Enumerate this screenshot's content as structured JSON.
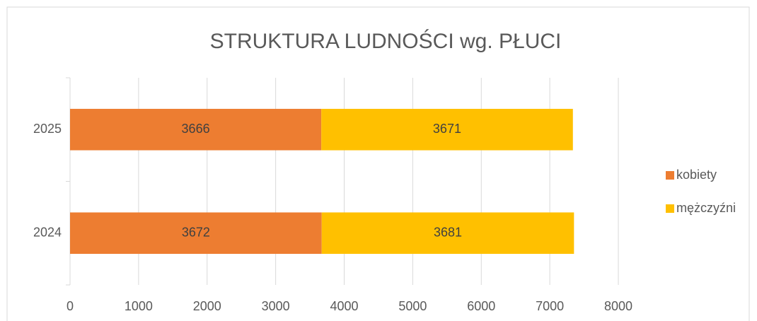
{
  "chart_data": {
    "type": "bar",
    "orientation": "horizontal",
    "stacked": true,
    "title": "STRUKTURA LUDNOŚCI wg. PŁUCI",
    "categories": [
      "2024",
      "2025"
    ],
    "series": [
      {
        "name": "kobiety",
        "color": "#ed7d31",
        "values": [
          3672,
          3666
        ]
      },
      {
        "name": "mężczyźni",
        "color": "#ffc000",
        "values": [
          3681,
          3671
        ]
      }
    ],
    "xlim": [
      0,
      8000
    ],
    "xticks": [
      0,
      1000,
      2000,
      3000,
      4000,
      5000,
      6000,
      7000,
      8000
    ],
    "grid": true,
    "legend": "right"
  }
}
